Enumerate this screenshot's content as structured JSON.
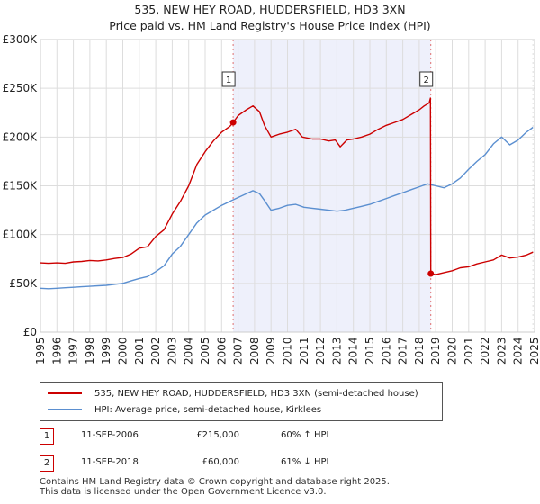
{
  "title_line1": "535, NEW HEY ROAD, HUDDERSFIELD, HD3 3XN",
  "title_line2": "Price paid vs. HM Land Registry's House Price Index (HPI)",
  "colors": {
    "property": "#cc0000",
    "hpi": "#5b8fd0",
    "shade": "#eef0fb",
    "grid": "#dddddd",
    "vline": "#e07070"
  },
  "chart_data": {
    "type": "line",
    "xlim": [
      1995,
      2025
    ],
    "ylim": [
      0,
      300000
    ],
    "yticks": [
      {
        "value": 0,
        "label": "£0"
      },
      {
        "value": 50000,
        "label": "£50K"
      },
      {
        "value": 100000,
        "label": "£100K"
      },
      {
        "value": 150000,
        "label": "£150K"
      },
      {
        "value": 200000,
        "label": "£200K"
      },
      {
        "value": 250000,
        "label": "£250K"
      },
      {
        "value": 300000,
        "label": "£300K"
      }
    ],
    "xticks": [
      "1995",
      "1996",
      "1997",
      "1998",
      "1999",
      "2000",
      "2001",
      "2002",
      "2003",
      "2004",
      "2005",
      "2006",
      "2007",
      "2008",
      "2009",
      "2010",
      "2011",
      "2012",
      "2013",
      "2014",
      "2015",
      "2016",
      "2017",
      "2018",
      "2019",
      "2020",
      "2021",
      "2022",
      "2023",
      "2024",
      "2025"
    ],
    "shaded_span": [
      2006.7,
      2018.7
    ],
    "markers": [
      {
        "label": "1",
        "x": 2006.7,
        "y": 215000
      },
      {
        "label": "2",
        "x": 2018.7,
        "y": 60000
      }
    ],
    "series": [
      {
        "name": "535, NEW HEY ROAD, HUDDERSFIELD, HD3 3XN (semi-detached house)",
        "color": "#cc0000",
        "points": [
          [
            1995.0,
            71000
          ],
          [
            1995.5,
            70500
          ],
          [
            1996.0,
            71000
          ],
          [
            1996.5,
            70500
          ],
          [
            1997.0,
            72000
          ],
          [
            1997.5,
            72500
          ],
          [
            1998.0,
            73500
          ],
          [
            1998.5,
            73000
          ],
          [
            1999.0,
            74000
          ],
          [
            1999.5,
            75500
          ],
          [
            2000.0,
            76500
          ],
          [
            2000.5,
            80000
          ],
          [
            2001.0,
            86000
          ],
          [
            2001.5,
            87500
          ],
          [
            2002.0,
            98000
          ],
          [
            2002.5,
            105000
          ],
          [
            2003.0,
            121000
          ],
          [
            2003.5,
            134000
          ],
          [
            2004.0,
            150000
          ],
          [
            2004.5,
            172000
          ],
          [
            2005.0,
            185000
          ],
          [
            2005.5,
            196000
          ],
          [
            2006.0,
            205000
          ],
          [
            2006.5,
            211000
          ],
          [
            2006.7,
            215000
          ],
          [
            2007.0,
            222000
          ],
          [
            2007.5,
            228000
          ],
          [
            2007.9,
            232000
          ],
          [
            2008.3,
            226000
          ],
          [
            2008.6,
            212000
          ],
          [
            2009.0,
            200000
          ],
          [
            2009.5,
            203000
          ],
          [
            2010.0,
            205000
          ],
          [
            2010.5,
            208000
          ],
          [
            2010.9,
            200000
          ],
          [
            2011.5,
            198000
          ],
          [
            2012.0,
            198000
          ],
          [
            2012.5,
            196000
          ],
          [
            2012.9,
            197000
          ],
          [
            2013.2,
            190000
          ],
          [
            2013.6,
            197000
          ],
          [
            2014.0,
            198000
          ],
          [
            2014.5,
            200000
          ],
          [
            2015.0,
            203000
          ],
          [
            2015.5,
            208000
          ],
          [
            2016.0,
            212000
          ],
          [
            2016.5,
            215000
          ],
          [
            2017.0,
            218000
          ],
          [
            2017.5,
            223000
          ],
          [
            2018.0,
            228000
          ],
          [
            2018.3,
            232000
          ],
          [
            2018.6,
            235000
          ],
          [
            2018.68,
            240000
          ],
          [
            2018.7,
            60000
          ],
          [
            2019.0,
            59000
          ],
          [
            2019.5,
            61000
          ],
          [
            2020.0,
            63000
          ],
          [
            2020.5,
            66000
          ],
          [
            2021.0,
            67000
          ],
          [
            2021.5,
            70000
          ],
          [
            2022.0,
            72000
          ],
          [
            2022.5,
            74000
          ],
          [
            2023.0,
            79000
          ],
          [
            2023.5,
            76000
          ],
          [
            2024.0,
            77000
          ],
          [
            2024.5,
            79000
          ],
          [
            2024.9,
            82000
          ]
        ]
      },
      {
        "name": "HPI: Average price, semi-detached house, Kirklees",
        "color": "#5b8fd0",
        "points": [
          [
            1995.0,
            45000
          ],
          [
            1995.5,
            44500
          ],
          [
            1996.0,
            45000
          ],
          [
            1996.5,
            45500
          ],
          [
            1997.0,
            46000
          ],
          [
            1997.5,
            46500
          ],
          [
            1998.0,
            47000
          ],
          [
            1998.5,
            47500
          ],
          [
            1999.0,
            48000
          ],
          [
            1999.5,
            49000
          ],
          [
            2000.0,
            50000
          ],
          [
            2000.5,
            52500
          ],
          [
            2001.0,
            55000
          ],
          [
            2001.5,
            57000
          ],
          [
            2002.0,
            62000
          ],
          [
            2002.5,
            68000
          ],
          [
            2003.0,
            80000
          ],
          [
            2003.5,
            88000
          ],
          [
            2004.0,
            100000
          ],
          [
            2004.5,
            112000
          ],
          [
            2005.0,
            120000
          ],
          [
            2005.5,
            125000
          ],
          [
            2006.0,
            130000
          ],
          [
            2006.5,
            134000
          ],
          [
            2007.0,
            138000
          ],
          [
            2007.5,
            142000
          ],
          [
            2007.9,
            145000
          ],
          [
            2008.3,
            142000
          ],
          [
            2008.6,
            135000
          ],
          [
            2009.0,
            125000
          ],
          [
            2009.5,
            127000
          ],
          [
            2010.0,
            130000
          ],
          [
            2010.5,
            131000
          ],
          [
            2011.0,
            128000
          ],
          [
            2011.5,
            127000
          ],
          [
            2012.0,
            126000
          ],
          [
            2012.5,
            125000
          ],
          [
            2013.0,
            124000
          ],
          [
            2013.5,
            125000
          ],
          [
            2014.0,
            127000
          ],
          [
            2014.5,
            129000
          ],
          [
            2015.0,
            131000
          ],
          [
            2015.5,
            134000
          ],
          [
            2016.0,
            137000
          ],
          [
            2016.5,
            140000
          ],
          [
            2017.0,
            143000
          ],
          [
            2017.5,
            146000
          ],
          [
            2018.0,
            149000
          ],
          [
            2018.5,
            152000
          ],
          [
            2019.0,
            150000
          ],
          [
            2019.5,
            148000
          ],
          [
            2020.0,
            152000
          ],
          [
            2020.5,
            158000
          ],
          [
            2021.0,
            167000
          ],
          [
            2021.5,
            175000
          ],
          [
            2022.0,
            182000
          ],
          [
            2022.5,
            193000
          ],
          [
            2023.0,
            200000
          ],
          [
            2023.5,
            192000
          ],
          [
            2024.0,
            197000
          ],
          [
            2024.5,
            205000
          ],
          [
            2024.9,
            210000
          ]
        ]
      }
    ]
  },
  "legend": {
    "property_label": "535, NEW HEY ROAD, HUDDERSFIELD, HD3 3XN (semi-detached house)",
    "hpi_label": "HPI: Average price, semi-detached house, Kirklees"
  },
  "transactions": [
    {
      "num": "1",
      "date": "11-SEP-2006",
      "price": "£215,000",
      "hpi": "60% ↑ HPI"
    },
    {
      "num": "2",
      "date": "11-SEP-2018",
      "price": "£60,000",
      "hpi": "61% ↓ HPI"
    }
  ],
  "footer_line1": "Contains HM Land Registry data © Crown copyright and database right 2025.",
  "footer_line2": "This data is licensed under the Open Government Licence v3.0."
}
